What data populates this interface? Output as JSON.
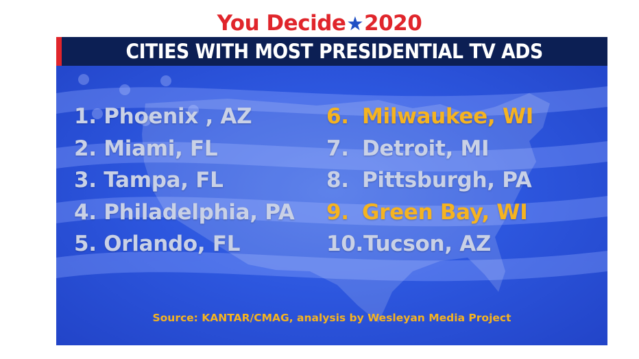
{
  "logo": {
    "word": "You Decide",
    "star": "★",
    "year": "2020"
  },
  "header": {
    "title": "CITIES WITH MOST PRESIDENTIAL TV ADS"
  },
  "list": {
    "left": [
      {
        "rank": "1.",
        "city": "Phoenix , AZ",
        "highlight": false
      },
      {
        "rank": "2.",
        "city": "Miami, FL",
        "highlight": false
      },
      {
        "rank": "3.",
        "city": "Tampa, FL",
        "highlight": false
      },
      {
        "rank": "4.",
        "city": "Philadelphia, PA",
        "highlight": false
      },
      {
        "rank": "5.",
        "city": "Orlando, FL",
        "highlight": false
      }
    ],
    "right": [
      {
        "rank": "6.",
        "city": "Milwaukee, WI",
        "highlight": true
      },
      {
        "rank": "7.",
        "city": "Detroit, MI",
        "highlight": false
      },
      {
        "rank": "8.",
        "city": "Pittsburgh, PA",
        "highlight": false
      },
      {
        "rank": "9.",
        "city": "Green Bay, WI",
        "highlight": true
      },
      {
        "rank": "10.",
        "city": "Tucson, AZ",
        "highlight": false
      }
    ]
  },
  "source": "Source: KANTAR/CMAG, analysis by Wesleyan Media Project",
  "colors": {
    "brand_red": "#e0252b",
    "star_blue": "#1f4fc4",
    "header_navy": "#0c1f54",
    "background_blue": "#2d57df",
    "text_light": "#c9d1e6",
    "highlight_gold": "#f5b321"
  }
}
